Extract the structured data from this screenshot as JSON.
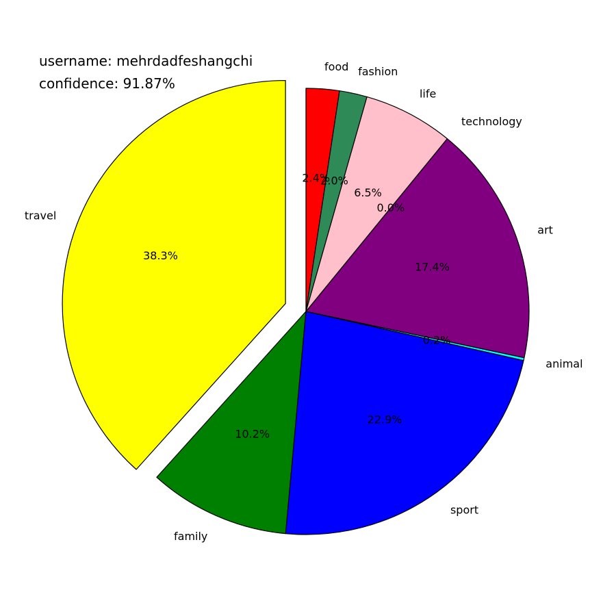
{
  "header": {
    "username_line": "username: mehrdadfeshangchi",
    "confidence_line": "confidence: 91.87%"
  },
  "chart_data": {
    "type": "pie",
    "start": "travel slice exploded, slices run counter-clockwise from the 12 o'clock position",
    "slices": [
      {
        "label": "travel",
        "value": 38.3,
        "pct_label": "38.3%",
        "color": "#ffff00",
        "explode": true
      },
      {
        "label": "family",
        "value": 10.2,
        "pct_label": "10.2%",
        "color": "#008000",
        "explode": false
      },
      {
        "label": "sport",
        "value": 22.9,
        "pct_label": "22.9%",
        "color": "#0000ff",
        "explode": false
      },
      {
        "label": "animal",
        "value": 0.2,
        "pct_label": "0.2%",
        "color": "#00ffff",
        "explode": false
      },
      {
        "label": "art",
        "value": 17.4,
        "pct_label": "17.4%",
        "color": "#800080",
        "explode": false
      },
      {
        "label": "technology",
        "value": 0.0,
        "pct_label": "0.0%",
        "color": "#ffc0cb",
        "explode": false
      },
      {
        "label": "life",
        "value": 6.5,
        "pct_label": "6.5%",
        "color": "#ffc0cb",
        "explode": false
      },
      {
        "label": "fashion",
        "value": 2.0,
        "pct_label": "2.0%",
        "color": "#2e8b57",
        "explode": false
      },
      {
        "label": "food",
        "value": 2.4,
        "pct_label": "2.4%",
        "color": "#ff0000",
        "explode": false
      }
    ]
  }
}
